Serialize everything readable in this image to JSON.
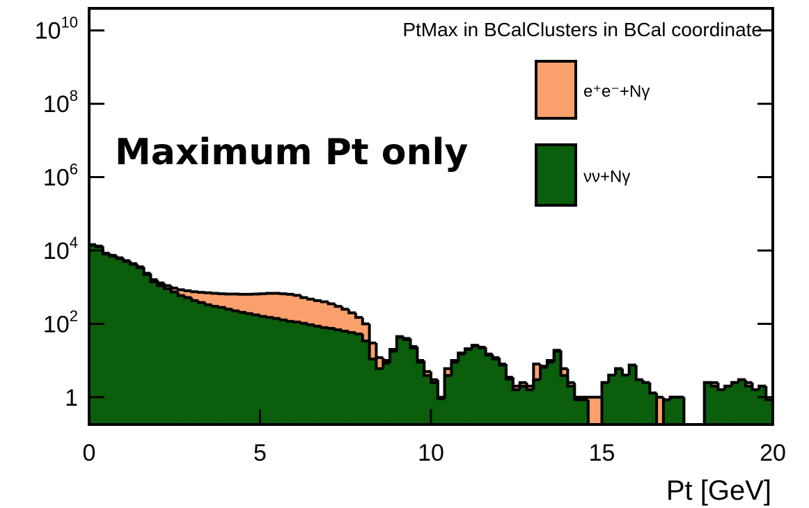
{
  "chart_data": {
    "type": "histogram",
    "title": "PtMax in BCalClusters in BCal coordinate",
    "annotation": "Maximum Pt only",
    "x_label": "Pt [GeV]",
    "log_y": true,
    "legend": "top right",
    "bins": [
      0,
      0.2,
      0.4,
      0.6,
      0.8,
      1,
      1.2,
      1.4,
      1.6,
      1.8,
      2,
      2.2,
      2.4,
      2.6,
      2.8,
      3,
      3.2,
      3.4,
      3.6,
      3.8,
      4,
      4.2,
      4.4,
      4.6,
      4.8,
      5,
      5.2,
      5.4,
      5.6,
      5.8,
      6,
      6.2,
      6.4,
      6.6,
      6.8,
      7,
      7.2,
      7.4,
      7.6,
      7.8,
      8,
      8.2,
      8.4,
      8.6,
      8.8,
      9,
      9.2,
      9.4,
      9.6,
      9.8,
      10,
      10.2,
      10.4,
      10.6,
      10.8,
      11,
      11.2,
      11.4,
      11.6,
      11.8,
      12,
      12.2,
      12.4,
      12.6,
      12.8,
      13,
      13.2,
      13.4,
      13.6,
      13.8,
      14,
      14.2,
      14.4,
      14.6,
      14.8,
      15,
      15.2,
      15.4,
      15.6,
      15.8,
      16,
      16.2,
      16.4,
      16.6,
      16.8,
      17,
      17.2,
      17.4,
      17.6,
      17.8,
      18,
      18.2,
      18.4,
      18.6,
      18.8,
      19,
      19.2,
      19.4,
      19.6,
      19.8,
      20
    ],
    "series": [
      {
        "name": "e⁺e⁻+Nγ",
        "color": "#f9a06c",
        "values": [
          14500,
          13200,
          8400,
          7400,
          6300,
          5300,
          4400,
          3600,
          2400,
          1600,
          1300,
          1100,
          950,
          850,
          800,
          750,
          720,
          700,
          680,
          660,
          650,
          650,
          640,
          640,
          650,
          660,
          680,
          680,
          660,
          640,
          600,
          520,
          470,
          430,
          400,
          350,
          300,
          250,
          200,
          150,
          100,
          30,
          12,
          10,
          20,
          45,
          40,
          24,
          10,
          5,
          3,
          1,
          6,
          10,
          16,
          21,
          26,
          23,
          15,
          12,
          8,
          3.5,
          2,
          2.5,
          2,
          8,
          7,
          10,
          19,
          6,
          2.5,
          1,
          1,
          1,
          1,
          2.5,
          4,
          6,
          4,
          7.5,
          3,
          2.5,
          1.3,
          1,
          0.85,
          1,
          1,
          0,
          0,
          0,
          2.5,
          2.5,
          1.6,
          2,
          2.5,
          3,
          2.5,
          1.6,
          2,
          0.85
        ]
      },
      {
        "name": "νν+Nγ",
        "color": "#0b5e0b",
        "values": [
          14000,
          12600,
          8000,
          7000,
          6000,
          5000,
          4200,
          3400,
          2200,
          1400,
          1100,
          900,
          740,
          590,
          520,
          430,
          380,
          330,
          300,
          280,
          250,
          225,
          205,
          190,
          175,
          160,
          150,
          140,
          128,
          117,
          112,
          103,
          94,
          86,
          79,
          75,
          69,
          63,
          58,
          53,
          34,
          11,
          6,
          8.5,
          18,
          43,
          37,
          22,
          9,
          3.9,
          2.5,
          0.9,
          3.9,
          9,
          15,
          20,
          25,
          22,
          14,
          11,
          7.5,
          3.1,
          1.6,
          2,
          1.6,
          3,
          6.5,
          9,
          18,
          3.9,
          2,
          0.85,
          0.85,
          0,
          0,
          2.5,
          4,
          6,
          4,
          7.5,
          3,
          2.5,
          1.3,
          0,
          0.85,
          1,
          1,
          0,
          0,
          0,
          2.5,
          2,
          1.6,
          2,
          2.5,
          3,
          2,
          1.6,
          2,
          0.85
        ]
      }
    ],
    "xlim": [
      0,
      20
    ],
    "xticks": [
      0,
      5,
      10,
      15,
      20
    ],
    "ylim": [
      0.18,
      40000000000
    ],
    "yticks": [
      1,
      {
        "value": 100,
        "label": "10",
        "sup": "2"
      },
      {
        "value": 10000,
        "label": "10",
        "sup": "4"
      },
      {
        "value": 1000000,
        "label": "10",
        "sup": "6"
      },
      {
        "value": 100000000,
        "label": "10",
        "sup": "8"
      },
      {
        "value": 10000000000,
        "label": "10",
        "sup": "10"
      }
    ]
  }
}
